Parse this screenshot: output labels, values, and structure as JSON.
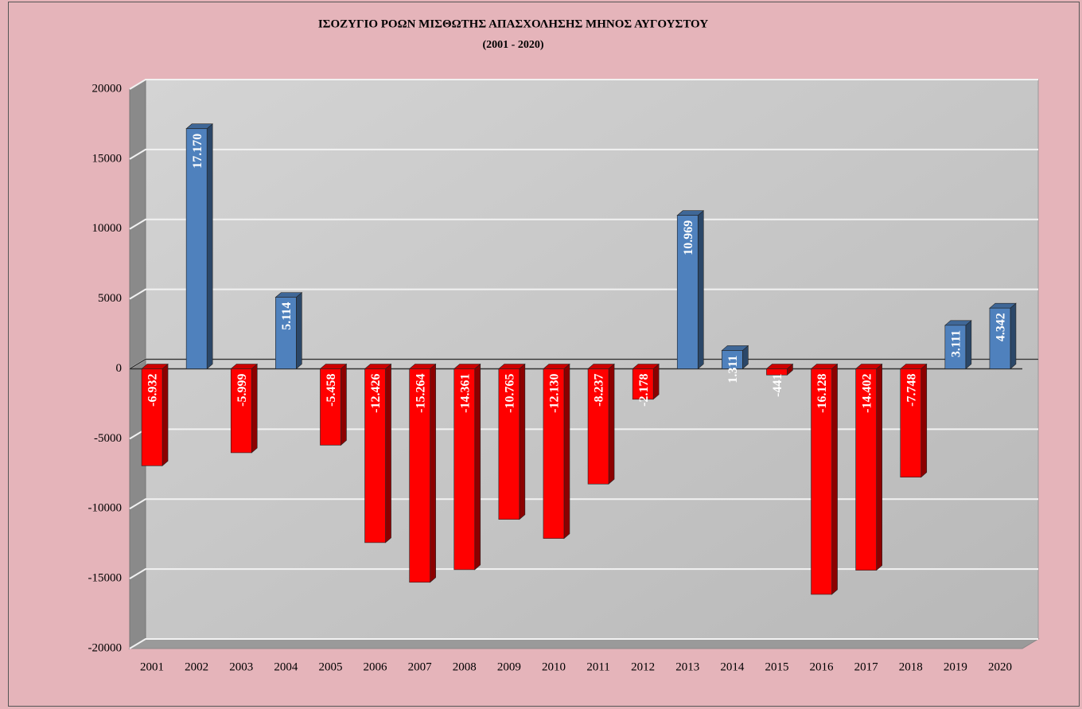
{
  "chart_data": {
    "type": "bar",
    "title": "ΙΣΟΖΥΓΙΟ ΡΟΩΝ ΜΙΣΘΩΤΗΣ ΑΠΑΣΧΟΛΗΣΗΣ ΜΗΝΟΣ  ΑΥΓΟΥΣΤΟΥ",
    "subtitle": "(2001 - 2020)",
    "categories": [
      "2001",
      "2002",
      "2003",
      "2004",
      "2005",
      "2006",
      "2007",
      "2008",
      "2009",
      "2010",
      "2011",
      "2012",
      "2013",
      "2014",
      "2015",
      "2016",
      "2017",
      "2018",
      "2019",
      "2020"
    ],
    "values": [
      -6932,
      17170,
      -5999,
      5114,
      -5458,
      -12426,
      -15264,
      -14361,
      -10765,
      -12130,
      -8237,
      -2178,
      10969,
      1311,
      -441,
      -16128,
      -14402,
      -7748,
      3111,
      4342
    ],
    "value_labels": [
      "-6.932",
      "17.170",
      "-5.999",
      "5.114",
      "-5.458",
      "-12.426",
      "-15.264",
      "-14.361",
      "-10.765",
      "-12.130",
      "-8.237",
      "-2.178",
      "10.969",
      "1.311",
      "-441",
      "-16.128",
      "-14.402",
      "-7.748",
      "3.111",
      "4.342"
    ],
    "positive_color": "#4f81bd",
    "negative_color": "#ff0000",
    "ylim": [
      -20000,
      20000
    ],
    "yticks": [
      -20000,
      -15000,
      -10000,
      -5000,
      0,
      5000,
      10000,
      15000,
      20000
    ],
    "grid": true
  }
}
